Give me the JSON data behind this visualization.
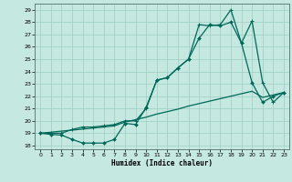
{
  "xlabel": "Humidex (Indice chaleur)",
  "bg_color": "#c5e8e0",
  "grid_color": "#9ecec4",
  "line_color": "#006858",
  "xlim": [
    -0.5,
    23.5
  ],
  "ylim": [
    17.7,
    29.5
  ],
  "xticks": [
    0,
    1,
    2,
    3,
    4,
    5,
    6,
    7,
    8,
    9,
    10,
    11,
    12,
    13,
    14,
    15,
    16,
    17,
    18,
    19,
    20,
    21,
    22,
    23
  ],
  "yticks": [
    18,
    19,
    20,
    21,
    22,
    23,
    24,
    25,
    26,
    27,
    28,
    29
  ],
  "line1_x": [
    0,
    1,
    2,
    3,
    4,
    5,
    6,
    7,
    8,
    9,
    10,
    11,
    12,
    13,
    14,
    15,
    16,
    17,
    18,
    19,
    20,
    21,
    22,
    23
  ],
  "line1_y": [
    19.0,
    18.9,
    18.85,
    18.5,
    18.2,
    18.2,
    18.2,
    18.5,
    19.8,
    19.7,
    21.1,
    23.3,
    23.5,
    24.3,
    25.0,
    26.7,
    27.8,
    27.7,
    28.0,
    26.3,
    23.1,
    21.5,
    22.0,
    22.3
  ],
  "line2_x": [
    0,
    1,
    2,
    3,
    4,
    5,
    6,
    7,
    8,
    9,
    10,
    11,
    12,
    13,
    14,
    15,
    16,
    17,
    18,
    19,
    20,
    21,
    22,
    23
  ],
  "line2_y": [
    19.0,
    19.08,
    19.17,
    19.25,
    19.33,
    19.42,
    19.5,
    19.6,
    19.9,
    20.1,
    20.3,
    20.55,
    20.75,
    20.95,
    21.2,
    21.4,
    21.6,
    21.8,
    22.0,
    22.2,
    22.4,
    21.9,
    22.1,
    22.3
  ],
  "line3_x": [
    0,
    1,
    2,
    3,
    4,
    5,
    6,
    7,
    8,
    9,
    10,
    11,
    12,
    13,
    14,
    15,
    16,
    17,
    18,
    19,
    20,
    21,
    22,
    23
  ],
  "line3_y": [
    19.0,
    19.0,
    19.0,
    19.3,
    19.5,
    19.5,
    19.6,
    19.7,
    20.0,
    20.0,
    21.0,
    23.3,
    23.5,
    24.3,
    25.0,
    27.8,
    27.7,
    27.8,
    29.0,
    26.3,
    28.1,
    23.1,
    21.5,
    22.3
  ]
}
